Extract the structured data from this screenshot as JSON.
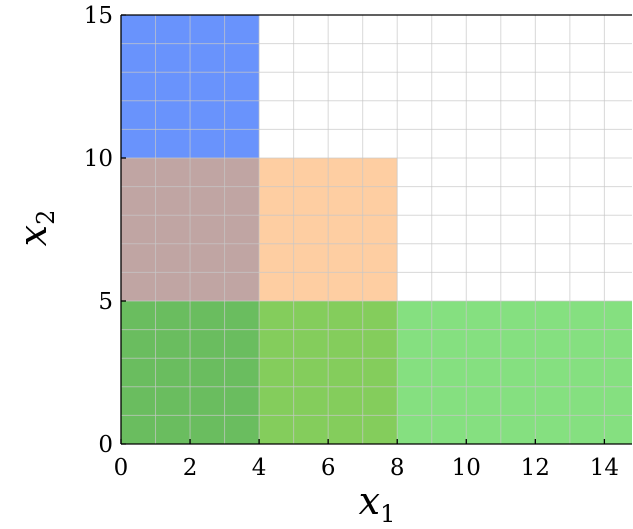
{
  "chart_data": {
    "type": "area",
    "xlabel": "x",
    "xlabel_sub": "1",
    "ylabel": "x",
    "ylabel_sub": "2",
    "xlim": [
      0,
      14.8
    ],
    "ylim": [
      0,
      15
    ],
    "x_ticks": [
      0,
      2,
      4,
      6,
      8,
      10,
      12,
      14
    ],
    "y_ticks": [
      0,
      5,
      10,
      15
    ],
    "grid": true,
    "grid_step": 1,
    "regions": [
      {
        "x": [
          0,
          4
        ],
        "y": [
          10,
          15
        ],
        "color": "#3f74fb",
        "opacity": 0.78
      },
      {
        "x": [
          0,
          4
        ],
        "y": [
          5,
          10
        ],
        "color": "#a8827f",
        "opacity": 0.72
      },
      {
        "x": [
          4,
          8
        ],
        "y": [
          5,
          10
        ],
        "color": "#fdbb7e",
        "opacity": 0.72
      },
      {
        "x": [
          0,
          4
        ],
        "y": [
          0,
          5
        ],
        "color": "#5ab64e",
        "opacity": 0.9
      },
      {
        "x": [
          4,
          8
        ],
        "y": [
          0,
          5
        ],
        "color": "#77c84a",
        "opacity": 0.9
      },
      {
        "x": [
          8,
          14.8
        ],
        "y": [
          0,
          5
        ],
        "color": "#70da6a",
        "opacity": 0.85
      }
    ]
  }
}
